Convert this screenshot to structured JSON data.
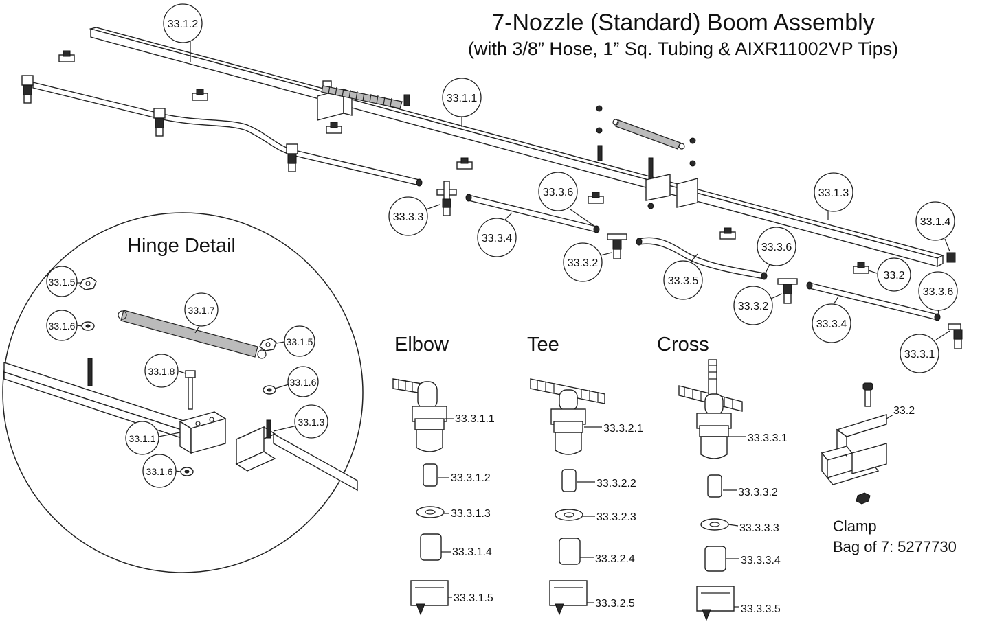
{
  "title": "7-Nozzle (Standard) Boom Assembly",
  "subtitle": "(with 3/8” Hose, 1” Sq. Tubing & AIXR11002VP Tips)",
  "hinge_detail_label": "Hinge Detail",
  "section_labels": {
    "elbow": "Elbow",
    "tee": "Tee",
    "cross": "Cross"
  },
  "clamp": {
    "label": "Clamp",
    "bag": "Bag of 7: 5277730"
  },
  "callouts": {
    "c_3312": "33.1.2",
    "c_3311": "33.1.1",
    "c_3313_main": "33.1.3",
    "c_3314": "33.1.4",
    "c_3336_a": "33.3.6",
    "c_3336_b": "33.3.6",
    "c_3336_c": "33.3.6",
    "c_3333": "33.3.3",
    "c_3334_a": "33.3.4",
    "c_3334_b": "33.3.4",
    "c_3332_a": "33.3.2",
    "c_3332_b": "33.3.2",
    "c_3335": "33.3.5",
    "c_332": "33.2",
    "c_3331": "33.3.1",
    "h_3315_a": "33.1.5",
    "h_3316_a": "33.1.6",
    "h_3317": "33.1.7",
    "h_3315_b": "33.1.5",
    "h_3318": "33.1.8",
    "h_3316_b": "33.1.6",
    "h_3313": "33.1.3",
    "h_3311": "33.1.1",
    "h_3316_c": "33.1.6"
  },
  "elbow_parts": [
    "33.3.1.1",
    "33.3.1.2",
    "33.3.1.3",
    "33.3.1.4",
    "33.3.1.5"
  ],
  "tee_parts": [
    "33.3.2.1",
    "33.3.2.2",
    "33.3.2.3",
    "33.3.2.4",
    "33.3.2.5"
  ],
  "cross_parts": [
    "33.3.3.1",
    "33.3.3.2",
    "33.3.3.3",
    "33.3.3.4",
    "33.3.3.5"
  ],
  "clamp_part": "33.2"
}
